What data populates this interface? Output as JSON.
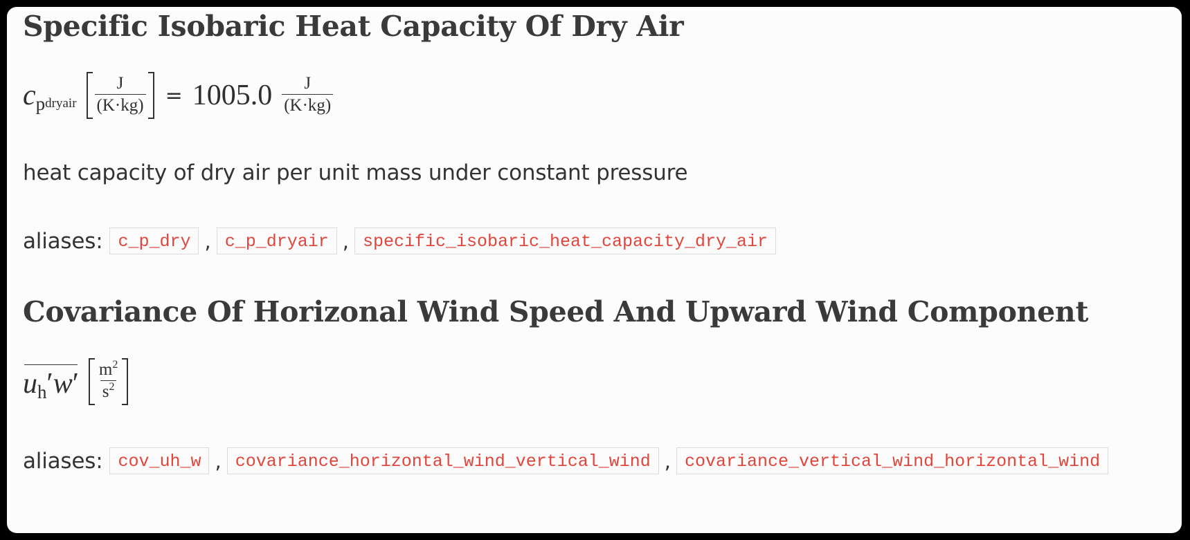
{
  "sections": [
    {
      "title": "Specific Isobaric Heat Capacity Of Dry Air",
      "symbol": {
        "main": "c",
        "sub": "p",
        "subsub": "dryair"
      },
      "unit": {
        "numerator": "J",
        "denominator": "(K·kg)"
      },
      "equals": "=",
      "value": "1005.0",
      "value_unit": {
        "numerator": "J",
        "denominator": "(K·kg)"
      },
      "description": "heat capacity of dry air per unit mass under constant pressure",
      "aliases_label": "aliases:",
      "aliases": [
        "c_p_dry",
        "c_p_dryair",
        "specific_isobaric_heat_capacity_dry_air"
      ],
      "separator": ","
    },
    {
      "title": "Covariance Of Horizonal Wind Speed And Upward Wind Component",
      "symbol": {
        "u": "u",
        "u_sub": "h",
        "prime1": "′",
        "w": "w",
        "prime2": "′"
      },
      "unit": {
        "numerator_base": "m",
        "numerator_exp": "2",
        "denominator_base": "s",
        "denominator_exp": "2"
      },
      "aliases_label": "aliases:",
      "aliases": [
        "cov_uh_w",
        "covariance_horizontal_wind_vertical_wind",
        "covariance_vertical_wind_horizontal_wind"
      ],
      "separator": ","
    }
  ]
}
